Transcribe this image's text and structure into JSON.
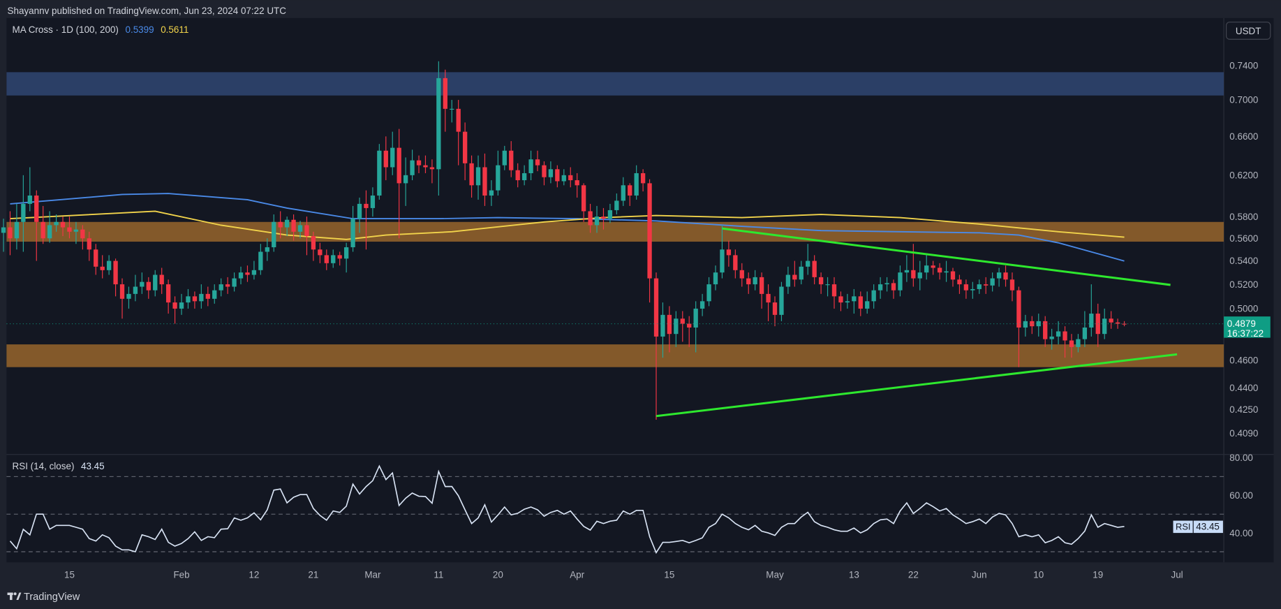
{
  "header": {
    "publisher_line": "Shayannv published on TradingView.com, Jun 23, 2024 07:22 UTC",
    "indicator_name": "MA Cross · 1D (100, 200)",
    "ma_fast_value": "0.5399",
    "ma_slow_value": "0.5611"
  },
  "currency_button": "USDT",
  "footer": {
    "logo_text": "TradingView"
  },
  "colors": {
    "background": "#131722",
    "up": "#26a69a",
    "down": "#f23645",
    "ma_fast": "#4a8ae8",
    "ma_slow": "#f2d44b",
    "trendline": "#2ee82e",
    "resistance_zone": "#2b3f66",
    "support_zone": "#83592a",
    "rsi_line": "#d9e4f5",
    "last_price_badge": "#0f9d84"
  },
  "price_axis": {
    "scale": "log",
    "ticks": [
      "0.7400",
      "0.7000",
      "0.6600",
      "0.6200",
      "0.5800",
      "0.5600",
      "0.5400",
      "0.5200",
      "0.5000",
      "0.4600",
      "0.4400",
      "0.4250",
      "0.4090"
    ],
    "last_price": "0.4879",
    "countdown": "16:37:22"
  },
  "time_axis": {
    "ticks": [
      {
        "label": "15",
        "date": "2024-01-15"
      },
      {
        "label": "Feb",
        "date": "2024-02-01"
      },
      {
        "label": "12",
        "date": "2024-02-12"
      },
      {
        "label": "21",
        "date": "2024-02-21"
      },
      {
        "label": "Mar",
        "date": "2024-03-01"
      },
      {
        "label": "11",
        "date": "2024-03-11"
      },
      {
        "label": "20",
        "date": "2024-03-20"
      },
      {
        "label": "Apr",
        "date": "2024-04-01"
      },
      {
        "label": "15",
        "date": "2024-04-15"
      },
      {
        "label": "May",
        "date": "2024-05-01"
      },
      {
        "label": "13",
        "date": "2024-05-13"
      },
      {
        "label": "22",
        "date": "2024-05-22"
      },
      {
        "label": "Jun",
        "date": "2024-06-01"
      },
      {
        "label": "10",
        "date": "2024-06-10"
      },
      {
        "label": "19",
        "date": "2024-06-19"
      },
      {
        "label": "Jul",
        "date": "2024-07-01"
      }
    ]
  },
  "rsi": {
    "label": "RSI (14, close)",
    "value": "43.45",
    "badge_label": "RSI",
    "ticks": [
      "80.00",
      "60.00",
      "40.00"
    ],
    "bands": [
      70,
      50,
      30
    ]
  },
  "chart_data": {
    "type": "candlestick",
    "interval": "1D",
    "first_date": "2024-01-05",
    "y_scale": "log",
    "ylim": [
      0.4,
      0.75
    ],
    "close": [
      0.57,
      0.56,
      0.575,
      0.592,
      0.6,
      0.575,
      0.56,
      0.572,
      0.575,
      0.57,
      0.566,
      0.568,
      0.56,
      0.55,
      0.535,
      0.532,
      0.54,
      0.52,
      0.508,
      0.512,
      0.518,
      0.522,
      0.515,
      0.528,
      0.52,
      0.505,
      0.5,
      0.505,
      0.51,
      0.506,
      0.512,
      0.508,
      0.515,
      0.52,
      0.518,
      0.525,
      0.53,
      0.528,
      0.532,
      0.548,
      0.552,
      0.575,
      0.57,
      0.577,
      0.566,
      0.572,
      0.562,
      0.55,
      0.545,
      0.538,
      0.545,
      0.542,
      0.552,
      0.578,
      0.592,
      0.588,
      0.6,
      0.645,
      0.628,
      0.648,
      0.612,
      0.62,
      0.635,
      0.63,
      0.628,
      0.626,
      0.725,
      0.69,
      0.69,
      0.665,
      0.632,
      0.61,
      0.628,
      0.6,
      0.605,
      0.63,
      0.645,
      0.625,
      0.615,
      0.622,
      0.636,
      0.63,
      0.618,
      0.626,
      0.614,
      0.62,
      0.615,
      0.61,
      0.585,
      0.572,
      0.58,
      0.578,
      0.586,
      0.595,
      0.61,
      0.6,
      0.622,
      0.612,
      0.525,
      0.478,
      0.495,
      0.48,
      0.492,
      0.488,
      0.485,
      0.5,
      0.506,
      0.52,
      0.53,
      0.55,
      0.545,
      0.532,
      0.525,
      0.52,
      0.526,
      0.512,
      0.505,
      0.495,
      0.518,
      0.528,
      0.524,
      0.535,
      0.54,
      0.526,
      0.52,
      0.52,
      0.51,
      0.505,
      0.506,
      0.51,
      0.5,
      0.506,
      0.515,
      0.52,
      0.521,
      0.515,
      0.53,
      0.532,
      0.525,
      0.53,
      0.536,
      0.534,
      0.53,
      0.531,
      0.524,
      0.52,
      0.515,
      0.516,
      0.52,
      0.519,
      0.525,
      0.53,
      0.524,
      0.515,
      0.485,
      0.49,
      0.486,
      0.49,
      0.476,
      0.478,
      0.482,
      0.475,
      0.47,
      0.476,
      0.485,
      0.496,
      0.48,
      0.492,
      0.489,
      0.488,
      0.4879
    ],
    "high": [
      0.578,
      0.585,
      0.592,
      0.62,
      0.628,
      0.605,
      0.59,
      0.585,
      0.582,
      0.58,
      0.58,
      0.575,
      0.572,
      0.566,
      0.555,
      0.545,
      0.545,
      0.542,
      0.525,
      0.518,
      0.528,
      0.53,
      0.526,
      0.532,
      0.534,
      0.524,
      0.51,
      0.512,
      0.516,
      0.514,
      0.52,
      0.518,
      0.52,
      0.525,
      0.526,
      0.53,
      0.535,
      0.536,
      0.54,
      0.555,
      0.56,
      0.582,
      0.585,
      0.58,
      0.582,
      0.576,
      0.58,
      0.566,
      0.556,
      0.55,
      0.55,
      0.548,
      0.556,
      0.59,
      0.598,
      0.605,
      0.608,
      0.652,
      0.66,
      0.665,
      0.668,
      0.638,
      0.646,
      0.64,
      0.64,
      0.636,
      0.745,
      0.735,
      0.7,
      0.7,
      0.675,
      0.64,
      0.64,
      0.642,
      0.615,
      0.645,
      0.65,
      0.655,
      0.632,
      0.63,
      0.645,
      0.645,
      0.634,
      0.634,
      0.63,
      0.626,
      0.628,
      0.622,
      0.612,
      0.592,
      0.59,
      0.588,
      0.592,
      0.602,
      0.618,
      0.612,
      0.63,
      0.626,
      0.616,
      0.53,
      0.505,
      0.502,
      0.498,
      0.498,
      0.494,
      0.506,
      0.512,
      0.526,
      0.536,
      0.572,
      0.558,
      0.55,
      0.538,
      0.53,
      0.532,
      0.53,
      0.52,
      0.51,
      0.522,
      0.535,
      0.54,
      0.54,
      0.555,
      0.545,
      0.53,
      0.526,
      0.526,
      0.514,
      0.512,
      0.516,
      0.514,
      0.514,
      0.52,
      0.526,
      0.526,
      0.524,
      0.536,
      0.545,
      0.555,
      0.54,
      0.545,
      0.54,
      0.538,
      0.54,
      0.534,
      0.528,
      0.524,
      0.522,
      0.524,
      0.526,
      0.53,
      0.534,
      0.536,
      0.53,
      0.518,
      0.495,
      0.494,
      0.496,
      0.494,
      0.484,
      0.49,
      0.486,
      0.48,
      0.48,
      0.498,
      0.52,
      0.504,
      0.5,
      0.498,
      0.492,
      0.49
    ],
    "low": [
      0.548,
      0.545,
      0.55,
      0.548,
      0.585,
      0.54,
      0.555,
      0.556,
      0.566,
      0.562,
      0.56,
      0.555,
      0.55,
      0.54,
      0.528,
      0.525,
      0.528,
      0.51,
      0.492,
      0.5,
      0.506,
      0.512,
      0.508,
      0.51,
      0.512,
      0.496,
      0.488,
      0.495,
      0.5,
      0.5,
      0.5,
      0.502,
      0.504,
      0.51,
      0.512,
      0.514,
      0.52,
      0.522,
      0.524,
      0.528,
      0.54,
      0.548,
      0.56,
      0.562,
      0.558,
      0.56,
      0.545,
      0.54,
      0.538,
      0.532,
      0.534,
      0.536,
      0.53,
      0.548,
      0.565,
      0.55,
      0.58,
      0.596,
      0.615,
      0.62,
      0.56,
      0.59,
      0.615,
      0.622,
      0.622,
      0.612,
      0.6,
      0.665,
      0.675,
      0.63,
      0.615,
      0.598,
      0.596,
      0.59,
      0.59,
      0.6,
      0.625,
      0.618,
      0.608,
      0.61,
      0.615,
      0.624,
      0.61,
      0.612,
      0.608,
      0.61,
      0.608,
      0.598,
      0.575,
      0.565,
      0.565,
      0.568,
      0.574,
      0.582,
      0.59,
      0.59,
      0.596,
      0.604,
      0.505,
      0.418,
      0.462,
      0.466,
      0.47,
      0.474,
      0.47,
      0.466,
      0.494,
      0.502,
      0.515,
      0.525,
      0.535,
      0.525,
      0.518,
      0.512,
      0.515,
      0.5,
      0.49,
      0.486,
      0.49,
      0.512,
      0.518,
      0.52,
      0.528,
      0.52,
      0.512,
      0.51,
      0.5,
      0.498,
      0.5,
      0.496,
      0.494,
      0.496,
      0.5,
      0.508,
      0.514,
      0.508,
      0.51,
      0.522,
      0.518,
      0.515,
      0.524,
      0.528,
      0.524,
      0.522,
      0.518,
      0.512,
      0.508,
      0.508,
      0.512,
      0.512,
      0.514,
      0.518,
      0.518,
      0.506,
      0.455,
      0.478,
      0.48,
      0.478,
      0.47,
      0.468,
      0.472,
      0.462,
      0.462,
      0.466,
      0.47,
      0.478,
      0.47,
      0.476,
      0.484,
      0.484,
      0.486
    ],
    "first_open": 0.565,
    "moving_averages": [
      {
        "name": "MA 100",
        "color_key": "ma_fast",
        "points": [
          [
            "2024-01-06",
            0.592
          ],
          [
            "2024-01-23",
            0.601
          ],
          [
            "2024-01-30",
            0.602
          ],
          [
            "2024-02-11",
            0.596
          ],
          [
            "2024-02-17",
            0.588
          ],
          [
            "2024-02-27",
            0.578
          ],
          [
            "2024-03-11",
            0.578
          ],
          [
            "2024-03-20",
            0.579
          ],
          [
            "2024-04-01",
            0.578
          ],
          [
            "2024-04-13",
            0.576
          ],
          [
            "2024-04-26",
            0.571
          ],
          [
            "2024-05-08",
            0.567
          ],
          [
            "2024-05-20",
            0.566
          ],
          [
            "2024-06-01",
            0.565
          ],
          [
            "2024-06-07",
            0.563
          ],
          [
            "2024-06-13",
            0.556
          ],
          [
            "2024-06-23",
            0.5399
          ]
        ]
      },
      {
        "name": "MA 200",
        "color_key": "ma_slow",
        "points": [
          [
            "2024-01-06",
            0.578
          ],
          [
            "2024-01-28",
            0.585
          ],
          [
            "2024-02-07",
            0.572
          ],
          [
            "2024-02-17",
            0.563
          ],
          [
            "2024-02-26",
            0.559
          ],
          [
            "2024-03-03",
            0.563
          ],
          [
            "2024-03-13",
            0.566
          ],
          [
            "2024-03-27",
            0.575
          ],
          [
            "2024-04-05",
            0.579
          ],
          [
            "2024-04-13",
            0.581
          ],
          [
            "2024-04-26",
            0.579
          ],
          [
            "2024-05-08",
            0.582
          ],
          [
            "2024-05-20",
            0.579
          ],
          [
            "2024-06-01",
            0.573
          ],
          [
            "2024-06-13",
            0.566
          ],
          [
            "2024-06-23",
            0.5611
          ]
        ]
      }
    ],
    "zones": [
      {
        "kind": "resistance",
        "color_key": "resistance_zone",
        "from": 0.705,
        "to": 0.732
      },
      {
        "kind": "support",
        "color_key": "support_zone",
        "from": 0.557,
        "to": 0.575
      },
      {
        "kind": "support",
        "color_key": "support_zone",
        "from": 0.455,
        "to": 0.472
      }
    ],
    "trendlines": [
      {
        "start": [
          "2024-04-23",
          0.569
        ],
        "end": [
          "2024-06-30",
          0.5195
        ]
      },
      {
        "start": [
          "2024-04-13",
          0.4205
        ],
        "end": [
          "2024-07-01",
          0.4645
        ]
      }
    ],
    "rsi": [
      null,
      35.7,
      31.6,
      41.9,
      39,
      50,
      50,
      42,
      44,
      44,
      44,
      43,
      42,
      37,
      35.7,
      39,
      37.5,
      33,
      31,
      31,
      30,
      39,
      38,
      36.5,
      42,
      35,
      33,
      34.4,
      37,
      40.6,
      36,
      38,
      37.5,
      42,
      42.2,
      48,
      46.8,
      48,
      50.7,
      47,
      52.3,
      62.8,
      63.4,
      56,
      59,
      60.4,
      60.4,
      53,
      49.3,
      46.8,
      51.7,
      50.9,
      54.2,
      66,
      60.7,
      64.7,
      67.8,
      75.6,
      68.4,
      71.9,
      54.6,
      58.5,
      61.2,
      59.5,
      59.4,
      55.8,
      72.7,
      64.7,
      64.7,
      59.8,
      52.3,
      45,
      48,
      55,
      45.8,
      49.6,
      53.8,
      49.6,
      50.5,
      52.6,
      53.8,
      52.3,
      48.9,
      50.9,
      52,
      50,
      51.7,
      47.4,
      43.5,
      41.5,
      46.2,
      45,
      46.2,
      46.8,
      51.7,
      50,
      52,
      52,
      38,
      29.5,
      35,
      35,
      35.5,
      36,
      34.8,
      36,
      37.4,
      43,
      45,
      50,
      48,
      45,
      43,
      41.7,
      44,
      40.9,
      40,
      38.7,
      43,
      45,
      45,
      48.5,
      51,
      46,
      44,
      43,
      41.7,
      40.9,
      40.9,
      42.6,
      40,
      41.7,
      45,
      47,
      47.4,
      45,
      51.7,
      56,
      50.4,
      53,
      56,
      54,
      51.7,
      53,
      49.6,
      47.4,
      45,
      46,
      47.4,
      45,
      48.5,
      50.4,
      49.6,
      45,
      38,
      39,
      38,
      39,
      34.8,
      36,
      38,
      34.8,
      34,
      37,
      41,
      49.6,
      43,
      45,
      44,
      43,
      43.45
    ],
    "rsi_ylim": [
      20,
      80
    ]
  }
}
